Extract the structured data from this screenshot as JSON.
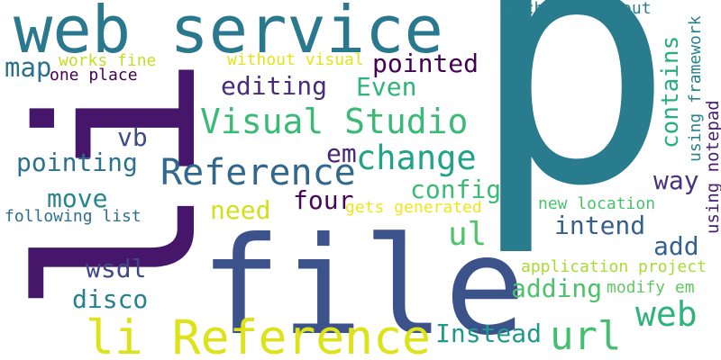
{
  "words": [
    {
      "text": "p",
      "color": "#297b8e"
    },
    {
      "text": "web service",
      "color": "#2a788e"
    },
    {
      "text": "li",
      "color": "#46166b"
    },
    {
      "text": "file",
      "color": "#3b528b"
    },
    {
      "text": "li Reference",
      "color": "#dde318"
    },
    {
      "text": "Visual Studio",
      "color": "#3aba76"
    },
    {
      "text": "Reference",
      "color": "#31688e"
    },
    {
      "text": "change",
      "color": "#20a386"
    },
    {
      "text": "pointed",
      "color": "#440154"
    },
    {
      "text": "editing",
      "color": "#472c7a"
    },
    {
      "text": "Even",
      "color": "#2fb47c"
    },
    {
      "text": "map",
      "color": "#2c718e"
    },
    {
      "text": "works fine",
      "color": "#c2df23"
    },
    {
      "text": "one place",
      "color": "#440154"
    },
    {
      "text": "without visual",
      "color": "#e2e418"
    },
    {
      "text": "machine without",
      "color": "#287d8e"
    },
    {
      "text": "contains",
      "color": "#29af7f"
    },
    {
      "text": "using framework",
      "color": "#26828e"
    },
    {
      "text": "using notepad",
      "color": "#481f70"
    },
    {
      "text": "vb",
      "color": "#3e4a89"
    },
    {
      "text": "em",
      "color": "#482475"
    },
    {
      "text": "pointing",
      "color": "#2c728e"
    },
    {
      "text": "config",
      "color": "#3bbb75"
    },
    {
      "text": "four",
      "color": "#450559"
    },
    {
      "text": "way",
      "color": "#46327e"
    },
    {
      "text": "move",
      "color": "#25848e"
    },
    {
      "text": "need",
      "color": "#d0e11c"
    },
    {
      "text": "following list",
      "color": "#2d708e"
    },
    {
      "text": "gets generated",
      "color": "#f1e51d"
    },
    {
      "text": "new location",
      "color": "#4ac16d"
    },
    {
      "text": "intend",
      "color": "#355f8d"
    },
    {
      "text": "ul",
      "color": "#4ec36b"
    },
    {
      "text": "add",
      "color": "#33638d"
    },
    {
      "text": "wsdl",
      "color": "#3f4788"
    },
    {
      "text": "application project",
      "color": "#a8db34"
    },
    {
      "text": "modify em",
      "color": "#5ec962"
    },
    {
      "text": "adding",
      "color": "#4cc26c"
    },
    {
      "text": "disco",
      "color": "#27808e"
    },
    {
      "text": "web",
      "color": "#2eb37c"
    },
    {
      "text": "Instead",
      "color": "#1f9a8a"
    },
    {
      "text": "url",
      "color": "#44bf70"
    }
  ]
}
